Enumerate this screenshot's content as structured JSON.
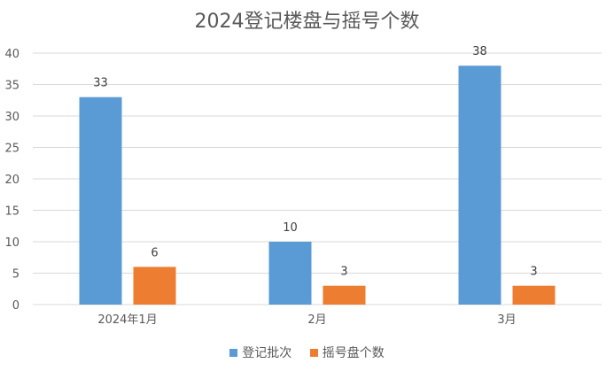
{
  "chart_data": {
    "type": "bar",
    "title": "2024登记楼盘与摇号个数",
    "categories": [
      "2024年1月",
      "2月",
      "3月"
    ],
    "series": [
      {
        "name": "登记批次",
        "values": [
          33,
          10,
          38
        ],
        "color": "#5B9BD5"
      },
      {
        "name": "摇号盘个数",
        "values": [
          6,
          3,
          3
        ],
        "color": "#ED7D31"
      }
    ],
    "ylim": [
      0,
      40
    ],
    "yticks": [
      0,
      5,
      10,
      15,
      20,
      25,
      30,
      35,
      40
    ],
    "grid": true,
    "legend": "bottom"
  }
}
